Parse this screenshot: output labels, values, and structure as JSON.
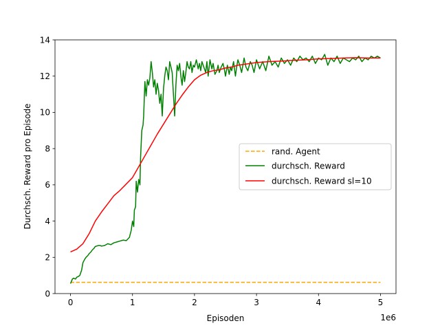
{
  "chart_data": {
    "type": "line",
    "xlabel": "Episoden",
    "ylabel": "Durchsch. Reward pro Episode",
    "x_offset_label": "1e6",
    "xlim": [
      -0.25,
      5.25
    ],
    "ylim": [
      0,
      14
    ],
    "x_ticks": [
      0,
      1,
      2,
      3,
      4,
      5
    ],
    "x_tick_labels": [
      "0",
      "1",
      "2",
      "3",
      "4",
      "5"
    ],
    "y_ticks": [
      0,
      2,
      4,
      6,
      8,
      10,
      12,
      14
    ],
    "y_tick_labels": [
      "0",
      "2",
      "4",
      "6",
      "8",
      "10",
      "12",
      "14"
    ],
    "grid": false,
    "legend_position": "center-right",
    "series": [
      {
        "name": "rand. Agent",
        "color": "#ffa500",
        "style": "dashed",
        "x": [
          0,
          5
        ],
        "y": [
          0.62,
          0.62
        ]
      },
      {
        "name": "durchsch. Reward",
        "color": "#008000",
        "style": "solid",
        "x": [
          0,
          0.03,
          0.05,
          0.08,
          0.1,
          0.13,
          0.15,
          0.18,
          0.2,
          0.23,
          0.25,
          0.28,
          0.3,
          0.33,
          0.35,
          0.38,
          0.4,
          0.43,
          0.45,
          0.48,
          0.5,
          0.55,
          0.6,
          0.65,
          0.7,
          0.75,
          0.8,
          0.85,
          0.9,
          0.95,
          0.98,
          1.0,
          1.02,
          1.03,
          1.05,
          1.06,
          1.08,
          1.1,
          1.12,
          1.13,
          1.15,
          1.17,
          1.18,
          1.2,
          1.22,
          1.24,
          1.26,
          1.28,
          1.3,
          1.32,
          1.34,
          1.36,
          1.38,
          1.4,
          1.42,
          1.44,
          1.46,
          1.48,
          1.5,
          1.52,
          1.54,
          1.56,
          1.58,
          1.6,
          1.62,
          1.64,
          1.66,
          1.68,
          1.7,
          1.72,
          1.74,
          1.76,
          1.78,
          1.8,
          1.82,
          1.84,
          1.86,
          1.88,
          1.9,
          1.92,
          1.94,
          1.96,
          1.98,
          2.0,
          2.03,
          2.06,
          2.08,
          2.1,
          2.12,
          2.15,
          2.18,
          2.2,
          2.22,
          2.25,
          2.28,
          2.3,
          2.33,
          2.36,
          2.38,
          2.4,
          2.43,
          2.46,
          2.48,
          2.5,
          2.53,
          2.56,
          2.58,
          2.6,
          2.63,
          2.66,
          2.68,
          2.7,
          2.73,
          2.76,
          2.8,
          2.83,
          2.86,
          2.9,
          2.93,
          2.96,
          3.0,
          3.05,
          3.1,
          3.15,
          3.2,
          3.25,
          3.3,
          3.35,
          3.4,
          3.45,
          3.5,
          3.55,
          3.6,
          3.65,
          3.7,
          3.75,
          3.8,
          3.85,
          3.9,
          3.95,
          4.0,
          4.05,
          4.1,
          4.15,
          4.2,
          4.25,
          4.3,
          4.35,
          4.4,
          4.45,
          4.5,
          4.55,
          4.6,
          4.65,
          4.7,
          4.75,
          4.8,
          4.85,
          4.9,
          4.95,
          5.0
        ],
        "y": [
          0.55,
          0.8,
          0.85,
          0.8,
          0.9,
          0.95,
          1.0,
          1.3,
          1.7,
          1.9,
          2.0,
          2.1,
          2.2,
          2.3,
          2.4,
          2.5,
          2.6,
          2.63,
          2.65,
          2.65,
          2.62,
          2.65,
          2.75,
          2.7,
          2.8,
          2.85,
          2.9,
          2.95,
          2.92,
          3.1,
          3.5,
          4.0,
          3.7,
          4.6,
          4.8,
          6.2,
          5.6,
          6.3,
          6.0,
          7.5,
          9.0,
          9.3,
          9.8,
          11.7,
          10.9,
          11.8,
          11.5,
          11.9,
          12.8,
          12.2,
          11.4,
          11.8,
          11.0,
          11.6,
          11.2,
          10.5,
          11.0,
          9.8,
          11.3,
          12.0,
          12.5,
          12.3,
          11.8,
          12.8,
          12.5,
          12.2,
          11.0,
          9.8,
          11.5,
          12.6,
          12.3,
          12.7,
          12.0,
          11.5,
          12.3,
          11.7,
          12.2,
          12.8,
          12.5,
          12.4,
          12.8,
          12.2,
          12.6,
          12.5,
          12.9,
          12.4,
          12.7,
          12.3,
          12.8,
          12.5,
          12.2,
          12.8,
          12.0,
          12.9,
          12.4,
          12.7,
          12.1,
          12.3,
          12.6,
          12.2,
          12.5,
          12.7,
          12.4,
          12.0,
          12.6,
          12.1,
          12.5,
          12.3,
          12.8,
          12.0,
          12.5,
          12.9,
          12.6,
          12.2,
          13.0,
          12.5,
          12.3,
          12.8,
          12.6,
          12.2,
          12.9,
          12.4,
          12.8,
          12.3,
          13.1,
          12.6,
          12.8,
          12.5,
          13.0,
          12.7,
          12.9,
          12.6,
          13.0,
          12.8,
          13.1,
          12.9,
          13.0,
          12.8,
          13.1,
          12.7,
          13.0,
          12.9,
          13.2,
          12.6,
          13.0,
          12.8,
          13.1,
          12.7,
          13.0,
          12.9,
          12.8,
          13.0,
          12.9,
          13.1,
          12.8,
          13.0,
          12.9,
          13.1,
          13.0,
          13.1,
          13.0
        ]
      },
      {
        "name": "durchsch. Reward sl=10",
        "color": "#ff0000",
        "style": "solid",
        "x": [
          0,
          0.1,
          0.2,
          0.3,
          0.4,
          0.5,
          0.6,
          0.7,
          0.8,
          0.9,
          1.0,
          1.1,
          1.2,
          1.3,
          1.4,
          1.5,
          1.6,
          1.7,
          1.8,
          1.9,
          2.0,
          2.1,
          2.2,
          2.3,
          2.4,
          2.5,
          2.6,
          2.7,
          2.8,
          2.9,
          3.0,
          3.2,
          3.4,
          3.6,
          3.8,
          4.0,
          4.2,
          4.4,
          4.6,
          4.8,
          5.0
        ],
        "y": [
          2.3,
          2.45,
          2.75,
          3.3,
          4.0,
          4.5,
          4.95,
          5.4,
          5.7,
          6.05,
          6.4,
          7.0,
          7.6,
          8.2,
          8.8,
          9.35,
          9.9,
          10.45,
          10.95,
          11.4,
          11.8,
          12.05,
          12.2,
          12.3,
          12.35,
          12.45,
          12.5,
          12.6,
          12.65,
          12.7,
          12.75,
          12.8,
          12.83,
          12.87,
          12.9,
          12.95,
          12.97,
          13.0,
          13.02,
          13.0,
          13.0
        ]
      }
    ]
  }
}
